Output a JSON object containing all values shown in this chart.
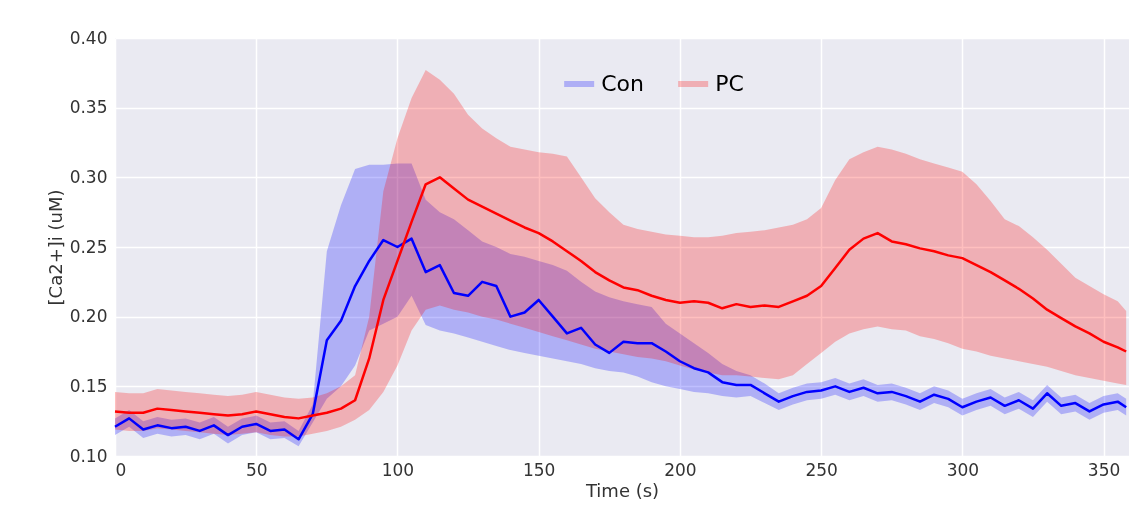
{
  "chart_data": {
    "type": "line",
    "xlabel": "Time (s)",
    "ylabel": "[Ca2+]i (uM)",
    "xlim": [
      0,
      359
    ],
    "ylim": [
      0.1,
      0.4
    ],
    "xticks": [
      0,
      50,
      100,
      150,
      200,
      250,
      300,
      350
    ],
    "yticks": [
      {
        "value": 0.1,
        "label": "0.10"
      },
      {
        "value": 0.15,
        "label": "0.15"
      },
      {
        "value": 0.2,
        "label": "0.20"
      },
      {
        "value": 0.25,
        "label": "0.25"
      },
      {
        "value": 0.3,
        "label": "0.30"
      },
      {
        "value": 0.35,
        "label": "0.35"
      },
      {
        "value": 0.4,
        "label": "0.40"
      }
    ],
    "grid": true,
    "legend": "top",
    "line_style": "solid",
    "x": [
      0,
      5,
      10,
      15,
      20,
      25,
      30,
      35,
      40,
      45,
      50,
      55,
      60,
      65,
      70,
      75,
      80,
      85,
      90,
      95,
      100,
      105,
      110,
      115,
      120,
      125,
      130,
      135,
      140,
      145,
      150,
      155,
      160,
      165,
      170,
      175,
      180,
      185,
      190,
      195,
      200,
      205,
      210,
      215,
      220,
      225,
      230,
      235,
      240,
      245,
      250,
      255,
      260,
      265,
      270,
      275,
      280,
      285,
      290,
      295,
      300,
      305,
      310,
      315,
      320,
      325,
      330,
      335,
      340,
      345,
      350,
      355,
      358
    ],
    "series": [
      {
        "name": "Con",
        "color": "#0000ff",
        "values": [
          0.121,
          0.127,
          0.119,
          0.122,
          0.12,
          0.121,
          0.118,
          0.122,
          0.115,
          0.121,
          0.123,
          0.118,
          0.119,
          0.112,
          0.13,
          0.183,
          0.197,
          0.222,
          0.24,
          0.255,
          0.25,
          0.256,
          0.232,
          0.237,
          0.217,
          0.215,
          0.225,
          0.222,
          0.2,
          0.203,
          0.212,
          0.2,
          0.188,
          0.192,
          0.18,
          0.174,
          0.182,
          0.181,
          0.181,
          0.175,
          0.168,
          0.163,
          0.16,
          0.153,
          0.151,
          0.151,
          0.145,
          0.139,
          0.143,
          0.146,
          0.147,
          0.15,
          0.146,
          0.149,
          0.145,
          0.146,
          0.143,
          0.139,
          0.144,
          0.141,
          0.135,
          0.139,
          0.142,
          0.136,
          0.14,
          0.134,
          0.145,
          0.136,
          0.138,
          0.132,
          0.137,
          0.139,
          0.135
        ],
        "lower": [
          0.115,
          0.121,
          0.113,
          0.116,
          0.114,
          0.115,
          0.112,
          0.116,
          0.109,
          0.115,
          0.117,
          0.112,
          0.113,
          0.107,
          0.124,
          0.141,
          0.15,
          0.165,
          0.19,
          0.195,
          0.2,
          0.215,
          0.194,
          0.19,
          0.188,
          0.185,
          0.182,
          0.179,
          0.176,
          0.174,
          0.172,
          0.17,
          0.168,
          0.166,
          0.163,
          0.161,
          0.16,
          0.157,
          0.153,
          0.15,
          0.148,
          0.146,
          0.145,
          0.143,
          0.142,
          0.143,
          0.138,
          0.133,
          0.137,
          0.14,
          0.141,
          0.144,
          0.14,
          0.143,
          0.139,
          0.14,
          0.137,
          0.133,
          0.138,
          0.135,
          0.129,
          0.133,
          0.136,
          0.13,
          0.134,
          0.128,
          0.139,
          0.13,
          0.132,
          0.126,
          0.131,
          0.133,
          0.129
        ],
        "upper": [
          0.127,
          0.133,
          0.125,
          0.128,
          0.126,
          0.127,
          0.124,
          0.128,
          0.121,
          0.127,
          0.129,
          0.124,
          0.125,
          0.118,
          0.137,
          0.247,
          0.28,
          0.306,
          0.309,
          0.309,
          0.31,
          0.31,
          0.284,
          0.275,
          0.27,
          0.262,
          0.254,
          0.25,
          0.245,
          0.243,
          0.24,
          0.237,
          0.233,
          0.225,
          0.218,
          0.214,
          0.211,
          0.209,
          0.207,
          0.195,
          0.188,
          0.181,
          0.174,
          0.166,
          0.161,
          0.158,
          0.152,
          0.145,
          0.149,
          0.152,
          0.153,
          0.156,
          0.152,
          0.155,
          0.151,
          0.152,
          0.149,
          0.145,
          0.15,
          0.147,
          0.141,
          0.145,
          0.148,
          0.142,
          0.146,
          0.14,
          0.151,
          0.142,
          0.144,
          0.138,
          0.143,
          0.145,
          0.141
        ]
      },
      {
        "name": "PC",
        "color": "#ff0000",
        "values": [
          0.132,
          0.131,
          0.131,
          0.134,
          0.133,
          0.132,
          0.131,
          0.13,
          0.129,
          0.13,
          0.132,
          0.13,
          0.128,
          0.127,
          0.129,
          0.131,
          0.134,
          0.14,
          0.17,
          0.212,
          0.24,
          0.268,
          0.295,
          0.3,
          0.292,
          0.284,
          0.279,
          0.274,
          0.269,
          0.264,
          0.26,
          0.254,
          0.247,
          0.24,
          0.232,
          0.226,
          0.221,
          0.219,
          0.215,
          0.212,
          0.21,
          0.211,
          0.21,
          0.206,
          0.209,
          0.207,
          0.208,
          0.207,
          0.211,
          0.215,
          0.222,
          0.235,
          0.248,
          0.256,
          0.26,
          0.254,
          0.252,
          0.249,
          0.247,
          0.244,
          0.242,
          0.237,
          0.232,
          0.226,
          0.22,
          0.213,
          0.205,
          0.199,
          0.193,
          0.188,
          0.182,
          0.178,
          0.175
        ],
        "lower": [
          0.119,
          0.118,
          0.118,
          0.12,
          0.119,
          0.118,
          0.117,
          0.116,
          0.115,
          0.116,
          0.117,
          0.115,
          0.114,
          0.114,
          0.116,
          0.118,
          0.121,
          0.126,
          0.133,
          0.146,
          0.165,
          0.19,
          0.205,
          0.208,
          0.205,
          0.203,
          0.2,
          0.198,
          0.195,
          0.192,
          0.189,
          0.186,
          0.183,
          0.18,
          0.177,
          0.175,
          0.173,
          0.171,
          0.17,
          0.168,
          0.165,
          0.162,
          0.16,
          0.158,
          0.158,
          0.157,
          0.156,
          0.155,
          0.158,
          0.166,
          0.174,
          0.182,
          0.188,
          0.191,
          0.193,
          0.191,
          0.19,
          0.186,
          0.184,
          0.181,
          0.177,
          0.175,
          0.172,
          0.17,
          0.168,
          0.166,
          0.164,
          0.161,
          0.158,
          0.156,
          0.154,
          0.152,
          0.151
        ],
        "upper": [
          0.146,
          0.145,
          0.145,
          0.148,
          0.147,
          0.146,
          0.145,
          0.144,
          0.143,
          0.144,
          0.146,
          0.144,
          0.142,
          0.141,
          0.142,
          0.145,
          0.15,
          0.158,
          0.2,
          0.29,
          0.328,
          0.357,
          0.377,
          0.37,
          0.36,
          0.345,
          0.335,
          0.328,
          0.322,
          0.32,
          0.318,
          0.317,
          0.315,
          0.3,
          0.285,
          0.275,
          0.266,
          0.263,
          0.261,
          0.259,
          0.258,
          0.257,
          0.257,
          0.258,
          0.26,
          0.261,
          0.262,
          0.264,
          0.266,
          0.27,
          0.278,
          0.298,
          0.313,
          0.318,
          0.322,
          0.32,
          0.317,
          0.313,
          0.31,
          0.307,
          0.304,
          0.295,
          0.283,
          0.27,
          0.265,
          0.257,
          0.248,
          0.238,
          0.228,
          0.222,
          0.216,
          0.211,
          0.204
        ]
      }
    ]
  }
}
